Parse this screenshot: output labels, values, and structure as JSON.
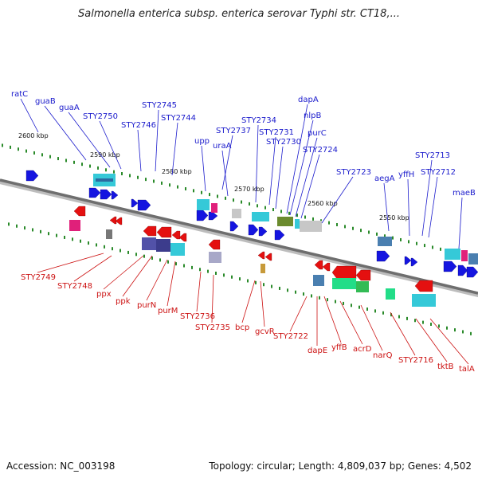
{
  "title": "Salmonella enterica subsp. enterica serovar Typhi str. CT18,...",
  "footer": {
    "accession": "Accession: NC_003198",
    "stats": "Topology: circular; Length: 4,809,037 bp; Genes: 4,502"
  },
  "colors": {
    "top_label": "#1a1acc",
    "bottom_label": "#cc1111",
    "tick": "#2a8a2a",
    "backbone": "#6e6e6e"
  },
  "scale_ticks": [
    "2600 kbp",
    "2590 kbp",
    "2580 kbp",
    "2570 kbp",
    "2560 kbp",
    "2550 kbp"
  ],
  "top_genes": [
    "ratC",
    "guaB",
    "guaA",
    "STY2750",
    "STY2745",
    "STY2746",
    "STY2744",
    "upp",
    "STY2737",
    "uraA",
    "STY2734",
    "STY2731",
    "STY2730",
    "dapA",
    "nlpB",
    "purC",
    "STY2724",
    "STY2723",
    "aegA",
    "yffH",
    "STY2713",
    "STY2712",
    "maeB"
  ],
  "bottom_genes": [
    "STY2749",
    "STY2748",
    "ppx",
    "ppk",
    "purN",
    "purM",
    "STY2736",
    "STY2735",
    "bcp",
    "gcvR",
    "STY2722",
    "dapE",
    "yffB",
    "acrD",
    "narQ",
    "STY2716",
    "tktB",
    "talA"
  ]
}
